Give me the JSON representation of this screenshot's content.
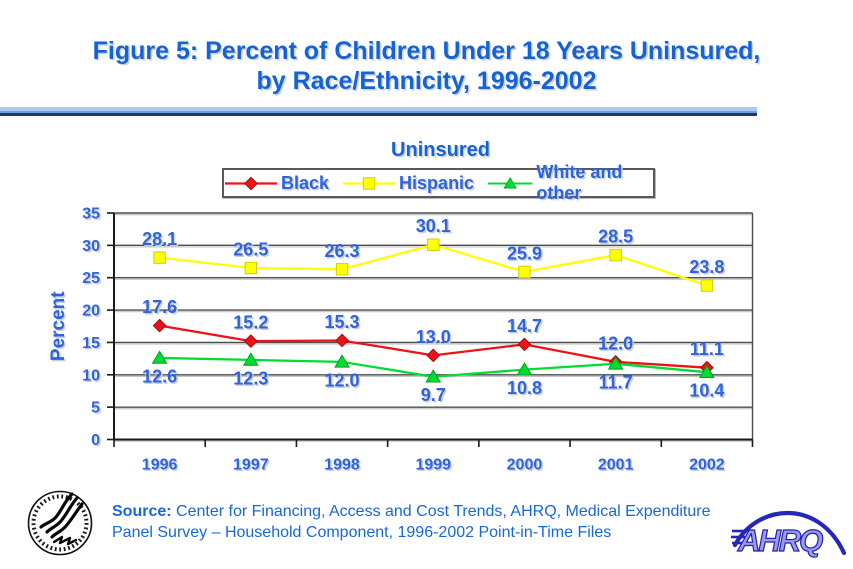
{
  "title": {
    "line1": "Figure 5: Percent of Children Under 18 Years Uninsured,",
    "line2": "by Race/Ethnicity, 1996-2002"
  },
  "chart_data": {
    "type": "line",
    "title": "Uninsured",
    "categories": [
      "1996",
      "1997",
      "1998",
      "1999",
      "2000",
      "2001",
      "2002"
    ],
    "series": [
      {
        "name": "Black",
        "marker": "diamond",
        "color": "#EE1118",
        "edge": "#A50D10",
        "label_position": "above",
        "values": [
          17.6,
          15.2,
          15.3,
          13.0,
          14.7,
          12.0,
          11.1
        ]
      },
      {
        "name": "Hispanic",
        "marker": "square",
        "color": "#FFFF00",
        "edge": "#CFCF00",
        "label_position": "above",
        "values": [
          28.1,
          26.5,
          26.3,
          30.1,
          25.9,
          28.5,
          23.8
        ]
      },
      {
        "name": "White and other",
        "marker": "triangle",
        "color": "#00DC32",
        "edge": "#00A01E",
        "label_position": "below",
        "values": [
          12.6,
          12.3,
          12.0,
          9.7,
          10.8,
          11.7,
          10.4
        ]
      }
    ],
    "xlabel": "",
    "ylabel": "Percent",
    "ylim": [
      0,
      35
    ],
    "yticks": [
      0,
      5,
      10,
      15,
      20,
      25,
      30,
      35
    ],
    "grid": true,
    "legend_position": "top"
  },
  "source": {
    "label": "Source:",
    "text": " Center for Financing, Access and Cost Trends, AHRQ, Medical Expenditure Panel Survey – Household Component, 1996-2002 Point-in-Time Files"
  },
  "logos": {
    "hhs": "hhs-seal",
    "ahrq_text": "AHRQ"
  },
  "colors": {
    "title_blue": "#1563D2",
    "label_blue": "#2E63DC",
    "divider_navy": "#1B3A66",
    "divider_light_blue": "#A8CBF4",
    "source_blue": "#1668D9",
    "gridline_gray": "#4D4D4D",
    "ahrq_letter_fill": "#9B9BEC",
    "ahrq_outline": "#2020AC"
  }
}
